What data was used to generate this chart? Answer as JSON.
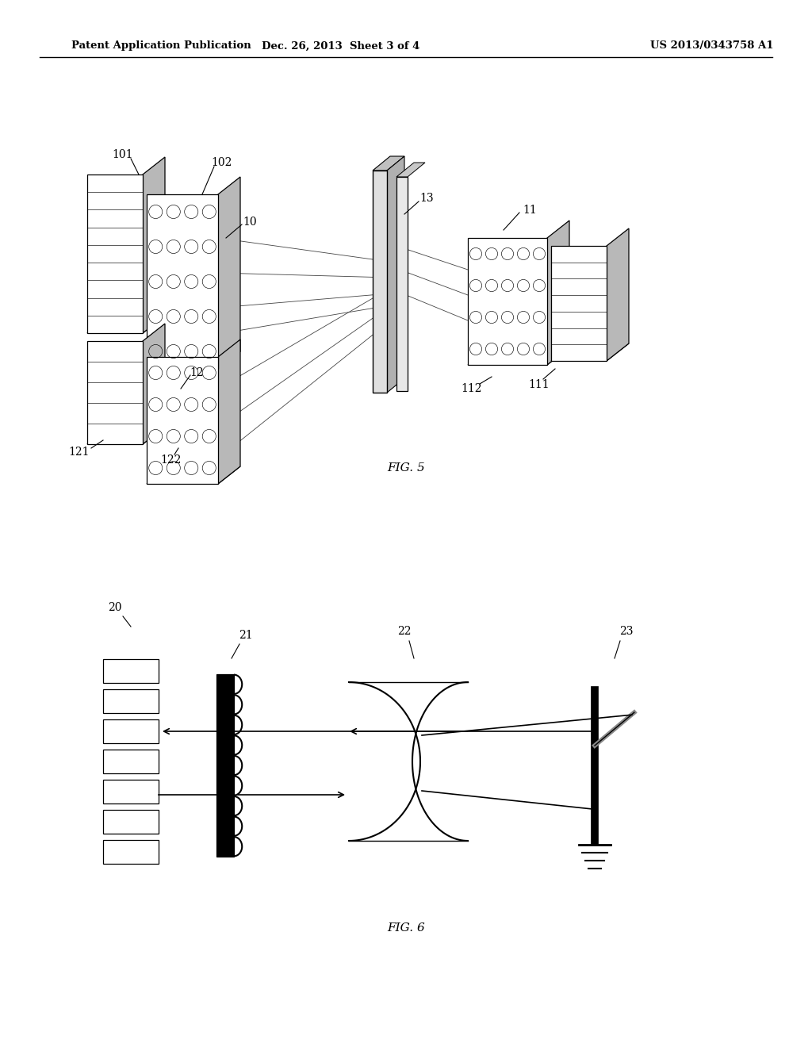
{
  "background_color": "#ffffff",
  "header_text": "Patent Application Publication",
  "header_date": "Dec. 26, 2013  Sheet 3 of 4",
  "header_patent": "US 2013/0343758 A1",
  "fig5_label": "FIG. 5",
  "fig6_label": "FIG. 6"
}
